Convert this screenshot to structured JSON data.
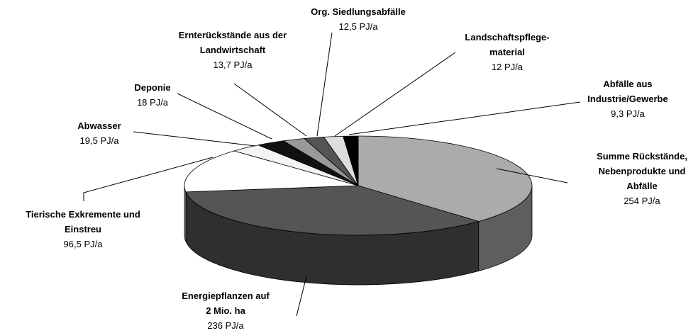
{
  "chart_data": {
    "type": "pie3d",
    "categories": [
      "Summe Rückstände,\nNebenprodukte und\nAbfälle",
      "Energiepflanzen auf\n2 Mio. ha",
      "Tierische Exkremente und\nEinstreu",
      "Abwasser",
      "Deponie",
      "Ernterückstände aus der\nLandwirtschaft",
      "Org. Siedlungsabfälle",
      "Landschaftspflege-\nmaterial",
      "Abfälle aus\nIndustrie/Gewerbe"
    ],
    "values": [
      254,
      236,
      96.5,
      19.5,
      18,
      13.7,
      12.5,
      12,
      9.3
    ],
    "value_labels": [
      "254 PJ/a",
      "236 PJ/a",
      "96,5 PJ/a",
      "19,5 PJ/a",
      "18 PJ/a",
      "13,7 PJ/a",
      "12,5 PJ/a",
      "12 PJ/a",
      "9,3 PJ/a"
    ],
    "colors": [
      "#ababab",
      "#555555",
      "#ffffff",
      "#f4f4f4",
      "#111111",
      "#999999",
      "#555555",
      "#dddddd",
      "#000000"
    ]
  }
}
